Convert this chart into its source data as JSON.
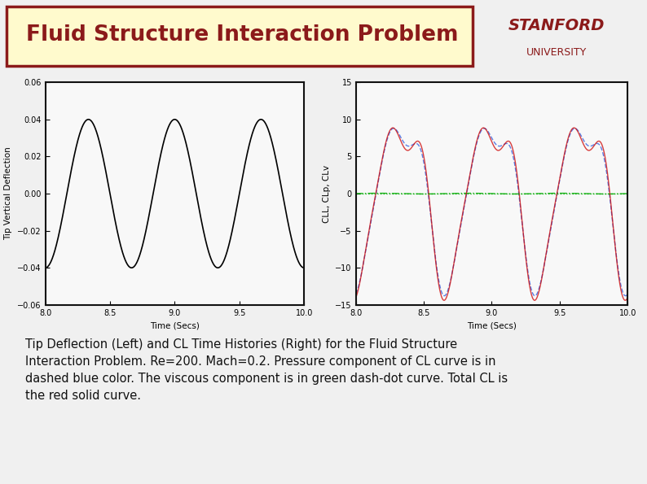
{
  "title": "Fluid Structure Interaction Problem",
  "title_color": "#8B1A1A",
  "title_box_bg": "#FFFACD",
  "title_box_edge": "#8B1A1A",
  "stanford_line1": "STANFORD",
  "stanford_line2": "UNIVERSITY",
  "stanford_color": "#8B1A1A",
  "left_plot": {
    "xlabel": "Time (Secs)",
    "ylabel": "Tip Vertical Deflection",
    "xlim": [
      8,
      10
    ],
    "ylim": [
      -0.06,
      0.06
    ],
    "xticks": [
      8,
      8.5,
      9,
      9.5,
      10
    ],
    "yticks": [
      -0.06,
      -0.04,
      -0.02,
      0,
      0.02,
      0.04,
      0.06
    ],
    "amplitude": 0.04,
    "frequency": 1.5,
    "x_start": 8,
    "x_end": 10
  },
  "right_plot": {
    "xlabel": "Time (Secs)",
    "ylabel": "CLL, CLp, CLv",
    "xlim": [
      8,
      10
    ],
    "ylim": [
      -15,
      15
    ],
    "xticks": [
      8,
      8.5,
      9,
      9.5,
      10
    ],
    "yticks": [
      -15,
      -10,
      -5,
      0,
      5,
      10,
      15
    ],
    "main_amplitude": 10.5,
    "green_color": "#00AA00",
    "blue_color": "#4169E1",
    "red_color": "#CC0000"
  },
  "caption": "Tip Deflection (Left) and CL Time Histories (Right) for the Fluid Structure\nInteraction Problem. Re=200. Mach=0.2. Pressure component of CL curve is in\ndashed blue color. The viscous component is in green dash-dot curve. Total CL is\nthe red solid curve.",
  "caption_fontsize": 10.5,
  "bg_color": "#F0F0F0",
  "plot_bg": "#F8F8F8",
  "line_color_left": "#000000"
}
